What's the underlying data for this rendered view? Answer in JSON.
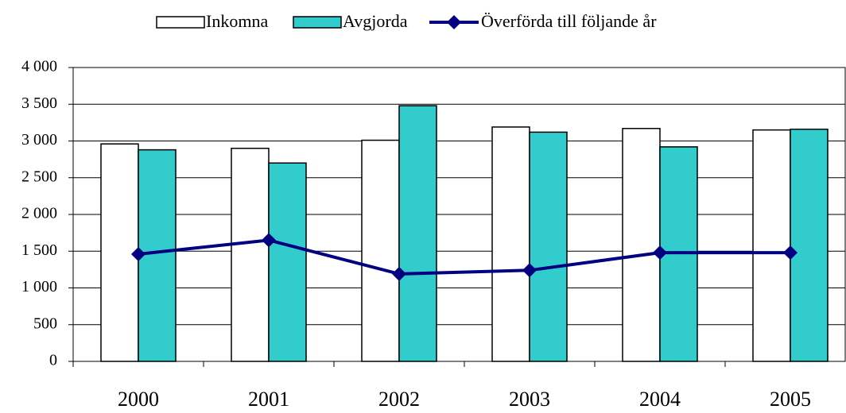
{
  "chart_data": {
    "type": "bar",
    "categories": [
      "2000",
      "2001",
      "2002",
      "2003",
      "2004",
      "2005"
    ],
    "series": [
      {
        "name": "Inkomna",
        "type": "bar",
        "color": "#ffffff",
        "values": [
          2960,
          2900,
          3010,
          3190,
          3170,
          3150
        ]
      },
      {
        "name": "Avgjorda",
        "type": "bar",
        "color": "#33cccc",
        "values": [
          2880,
          2700,
          3480,
          3120,
          2920,
          3160
        ]
      },
      {
        "name": "Överförda till följande år",
        "type": "line",
        "color": "#000080",
        "values": [
          1460,
          1650,
          1190,
          1240,
          1480,
          1480
        ]
      }
    ],
    "ylim": [
      0,
      4000
    ],
    "yticks": [
      0,
      500,
      {
        "value": 1000,
        "label": "1 000"
      },
      {
        "value": 1500,
        "label": "1 500"
      },
      {
        "value": 2000,
        "label": "2 000"
      },
      {
        "value": 2500,
        "label": "2 500"
      },
      {
        "value": 3000,
        "label": "3 000"
      },
      {
        "value": 3500,
        "label": "3 500"
      },
      {
        "value": 4000,
        "label": "4 000"
      }
    ],
    "grid": true,
    "legend": "top"
  }
}
